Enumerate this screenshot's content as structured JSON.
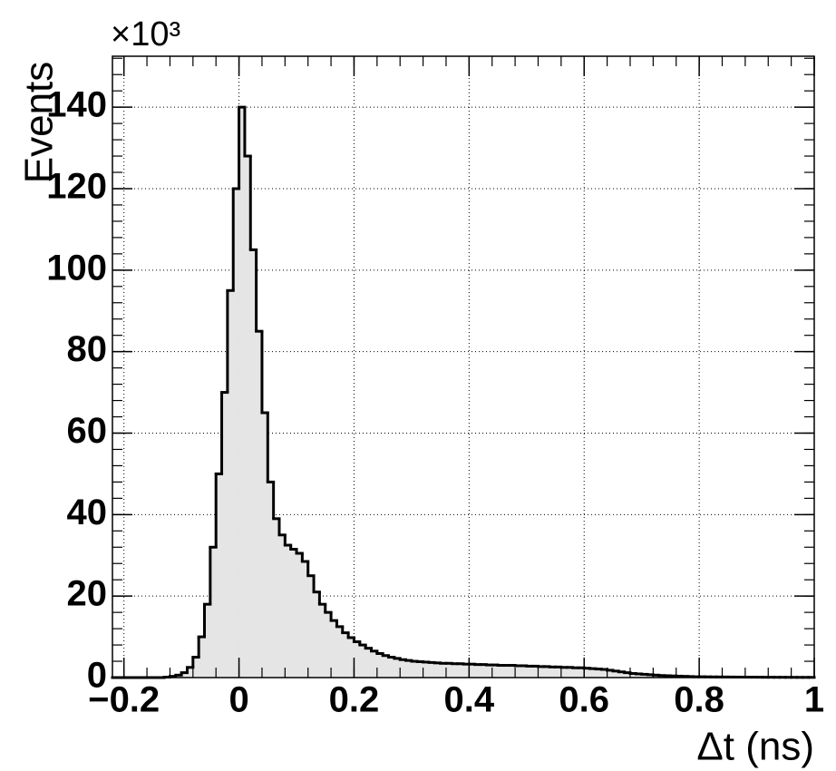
{
  "chart_data": {
    "type": "histogram",
    "xlabel": "Δt (ns)",
    "ylabel": "Events",
    "y_multiplier": "×10³",
    "color": "#e5e5e5",
    "line_color": "#000000",
    "grid": true,
    "xlim": [
      -0.22,
      1.0
    ],
    "ylim": [
      0,
      152.5
    ],
    "xticks": [
      {
        "value": -0.2,
        "label": "−0.2"
      },
      0,
      0.2,
      0.4,
      0.6,
      0.8,
      1
    ],
    "yticks": [
      0,
      20,
      40,
      60,
      80,
      100,
      120,
      140
    ],
    "bins": [
      -0.22,
      -0.21,
      -0.2,
      -0.19,
      -0.18,
      -0.17,
      -0.16,
      -0.15,
      -0.14,
      -0.13,
      -0.12,
      -0.11,
      -0.1,
      -0.09,
      -0.08,
      -0.07,
      -0.06,
      -0.05,
      -0.04,
      -0.03,
      -0.02,
      -0.01,
      0,
      0.01,
      0.02,
      0.03,
      0.04,
      0.05,
      0.06,
      0.07,
      0.08,
      0.09,
      0.1,
      0.11,
      0.12,
      0.13,
      0.14,
      0.15,
      0.16,
      0.17,
      0.18,
      0.19,
      0.2,
      0.21,
      0.22,
      0.23,
      0.24,
      0.25,
      0.26,
      0.27,
      0.28,
      0.29,
      0.3,
      0.31,
      0.32,
      0.33,
      0.34,
      0.35,
      0.36,
      0.37,
      0.38,
      0.39,
      0.4,
      0.41,
      0.42,
      0.43,
      0.44,
      0.45,
      0.46,
      0.47,
      0.48,
      0.49,
      0.5,
      0.51,
      0.52,
      0.53,
      0.54,
      0.55,
      0.56,
      0.57,
      0.58,
      0.59,
      0.6,
      0.61,
      0.62,
      0.63,
      0.64,
      0.65,
      0.66,
      0.67,
      0.68,
      0.69,
      0.7,
      0.71,
      0.72,
      0.73,
      0.74,
      0.75,
      0.76,
      0.77,
      0.78,
      0.79,
      0.8,
      0.81,
      0.82,
      0.83,
      0.84,
      0.85,
      0.86,
      0.87,
      0.88,
      0.89,
      0.9,
      0.91,
      0.92,
      0.93,
      0.94,
      0.95,
      0.96,
      0.97,
      0.98,
      0.99,
      1.0
    ],
    "values": [
      0,
      0,
      0,
      0,
      0,
      0,
      0,
      0,
      0,
      0.1,
      0.3,
      0.6,
      1.2,
      2.5,
      5,
      10,
      18,
      32,
      50,
      70,
      95,
      120,
      140,
      128,
      105,
      85,
      65,
      48,
      39,
      35,
      32.5,
      31.5,
      30.5,
      28.5,
      25,
      21,
      18,
      16,
      14,
      12.5,
      11,
      9.8,
      8.8,
      8,
      7.2,
      6.5,
      5.9,
      5.4,
      5,
      4.7,
      4.4,
      4.2,
      4.0,
      3.9,
      3.8,
      3.7,
      3.6,
      3.5,
      3.5,
      3.4,
      3.4,
      3.3,
      3.3,
      3.2,
      3.2,
      3.1,
      3.1,
      3.0,
      3.0,
      3.0,
      2.9,
      2.9,
      2.8,
      2.8,
      2.7,
      2.7,
      2.6,
      2.6,
      2.5,
      2.5,
      2.4,
      2.4,
      2.3,
      2.2,
      2.1,
      2.0,
      1.8,
      1.6,
      1.4,
      1.2,
      1.0,
      0.9,
      0.8,
      0.7,
      0.6,
      0.5,
      0.45,
      0.4,
      0.35,
      0.3,
      0.25,
      0.2,
      0.2,
      0.18,
      0.16,
      0.15,
      0.14,
      0.13,
      0.12,
      0.11,
      0.1,
      0.1,
      0.09,
      0.08,
      0.08,
      0.07,
      0.07,
      0.06,
      0.06,
      0.05,
      0.05,
      0.05
    ]
  }
}
